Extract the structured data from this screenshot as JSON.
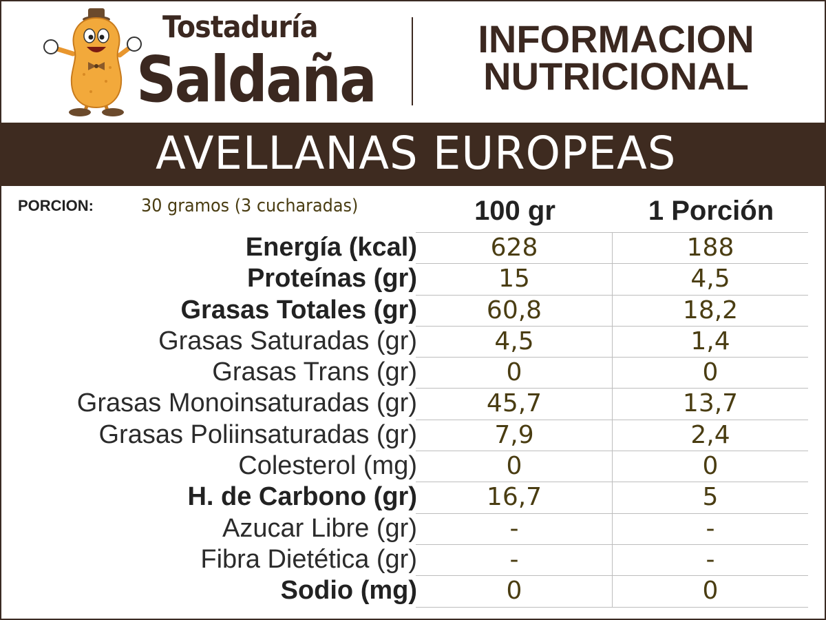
{
  "header": {
    "brand_line1": "Tostaduría",
    "brand_line2": "Saldaña",
    "info_line1": "INFORMACION",
    "info_line2": "NUTRICIONAL",
    "mascot_icon": "peanut-mascot-icon"
  },
  "product": {
    "name": "AVELLANAS EUROPEAS"
  },
  "portion": {
    "label": "PORCION:",
    "value": "30 gramos (3 cucharadas)"
  },
  "columns": [
    "100 gr",
    "1 Porción"
  ],
  "rows": [
    {
      "name": "Energía (kcal)",
      "bold": true,
      "per100": "628",
      "perPortion": "188"
    },
    {
      "name": "Proteínas (gr)",
      "bold": true,
      "per100": "15",
      "perPortion": "4,5"
    },
    {
      "name": "Grasas Totales (gr)",
      "bold": true,
      "per100": "60,8",
      "perPortion": "18,2"
    },
    {
      "name": "Grasas Saturadas (gr)",
      "bold": false,
      "per100": "4,5",
      "perPortion": "1,4"
    },
    {
      "name": "Grasas Trans (gr)",
      "bold": false,
      "per100": "0",
      "perPortion": "0"
    },
    {
      "name": "Grasas Monoinsaturadas (gr)",
      "bold": false,
      "per100": "45,7",
      "perPortion": "13,7"
    },
    {
      "name": "Grasas Poliinsaturadas (gr)",
      "bold": false,
      "per100": "7,9",
      "perPortion": "2,4"
    },
    {
      "name": "Colesterol (mg)",
      "bold": false,
      "per100": "0",
      "perPortion": "0"
    },
    {
      "name": "H. de Carbono (gr)",
      "bold": true,
      "per100": "16,7",
      "perPortion": "5"
    },
    {
      "name": "Azucar Libre (gr)",
      "bold": false,
      "per100": "-",
      "perPortion": "-"
    },
    {
      "name": "Fibra Dietética (gr)",
      "bold": false,
      "per100": "-",
      "perPortion": "-"
    },
    {
      "name": "Sodio (mg)",
      "bold": true,
      "per100": "0",
      "perPortion": "0"
    }
  ],
  "colors": {
    "brown": "#3e2b20",
    "value_text": "#4a3d12",
    "peanut": "#f2a93b"
  }
}
